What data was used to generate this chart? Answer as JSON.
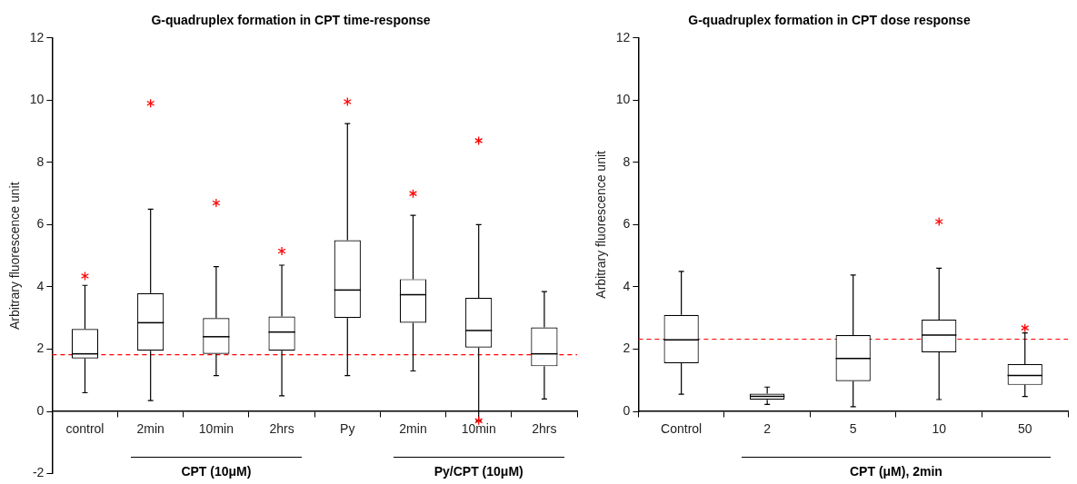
{
  "chart_data": [
    {
      "type": "box",
      "title": "G-quadruplex formation in CPT time-response",
      "ylabel": "Arbitrary fluorescence unit",
      "categories": [
        "control",
        "2min",
        "10min",
        "2hrs",
        "Py",
        "2min",
        "10min",
        "2hrs"
      ],
      "boxes": [
        {
          "low": 0.6,
          "q1": 1.7,
          "median": 1.85,
          "q3": 2.65,
          "high": 4.05,
          "outliers": [
            4.35
          ]
        },
        {
          "low": 0.35,
          "q1": 1.95,
          "median": 2.85,
          "q3": 3.8,
          "high": 6.5,
          "outliers": [
            9.9
          ]
        },
        {
          "low": 1.15,
          "q1": 1.85,
          "median": 2.4,
          "q3": 3.0,
          "high": 4.65,
          "outliers": [
            6.7
          ]
        },
        {
          "low": 0.5,
          "q1": 1.95,
          "median": 2.55,
          "q3": 3.05,
          "high": 4.7,
          "outliers": [
            5.15
          ]
        },
        {
          "low": 1.15,
          "q1": 3.0,
          "median": 3.9,
          "q3": 5.5,
          "high": 9.25,
          "outliers": [
            9.95
          ]
        },
        {
          "low": 1.3,
          "q1": 2.85,
          "median": 3.75,
          "q3": 4.25,
          "high": 6.3,
          "outliers": [
            7.0
          ]
        },
        {
          "low": -0.3,
          "q1": 2.05,
          "median": 2.6,
          "q3": 3.65,
          "high": 6.0,
          "outliers": [
            8.7,
            -0.3
          ]
        },
        {
          "low": 0.4,
          "q1": 1.45,
          "median": 1.85,
          "q3": 2.7,
          "high": 3.85
        }
      ],
      "ylim": [
        -2,
        12
      ],
      "yticks": [
        -2,
        0,
        2,
        4,
        6,
        8,
        10,
        12
      ],
      "grid": false,
      "ref_lines": [
        {
          "axis": "y",
          "value": 1.82,
          "color": "#ff0000",
          "line_style": "dashed"
        }
      ],
      "annotations": [
        "CPT (10μM)",
        "Py/CPT (10μM)"
      ]
    },
    {
      "type": "box",
      "title": "G-quadruplex formation in CPT dose response",
      "ylabel": "Arbitrary fluorescence unit",
      "categories": [
        "Control",
        "2",
        "5",
        "10",
        "50"
      ],
      "boxes": [
        {
          "low": 0.55,
          "q1": 1.55,
          "median": 2.3,
          "q3": 3.1,
          "high": 4.5
        },
        {
          "low": 0.22,
          "q1": 0.37,
          "median": 0.48,
          "q3": 0.57,
          "high": 0.78
        },
        {
          "low": 0.15,
          "q1": 0.97,
          "median": 1.7,
          "q3": 2.45,
          "high": 4.38
        },
        {
          "low": 0.38,
          "q1": 1.9,
          "median": 2.45,
          "q3": 2.95,
          "high": 4.6,
          "outliers": [
            6.1
          ]
        },
        {
          "low": 0.48,
          "q1": 0.85,
          "median": 1.15,
          "q3": 1.52,
          "high": 2.52,
          "outliers": [
            2.68
          ]
        }
      ],
      "ylim": [
        0,
        12
      ],
      "yticks": [
        0,
        2,
        4,
        6,
        8,
        10,
        12
      ],
      "grid": false,
      "ref_lines": [
        {
          "axis": "y",
          "value": 2.32,
          "color": "#ff0000",
          "line_style": "dashed"
        }
      ],
      "annotations": [
        "CPT (μM), 2min"
      ]
    }
  ]
}
